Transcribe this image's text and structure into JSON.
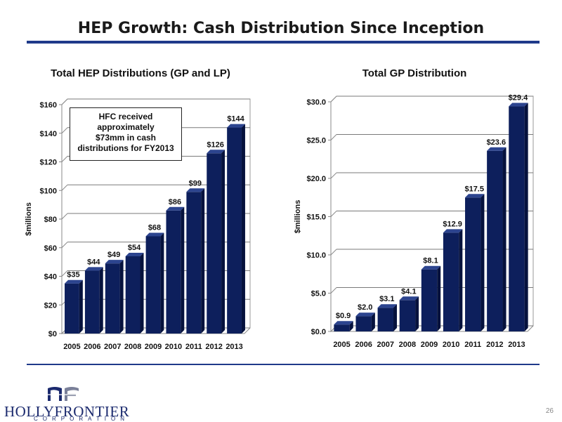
{
  "title": "HEP Growth: Cash Distribution Since Inception",
  "page_number": "26",
  "logo": {
    "text": "HOLLYFRONTIER",
    "subtext": "CORPORATION"
  },
  "callout": "HFC received approximately $73mm in cash distributions for FY2013",
  "colors": {
    "bar": "#0d1f5c",
    "rule": "#1f3a8a"
  },
  "chart_data": [
    {
      "type": "bar",
      "title": "Total HEP Distributions (GP and LP)",
      "ylabel": "$millions",
      "xlabel": "",
      "categories": [
        "2005",
        "2006",
        "2007",
        "2008",
        "2009",
        "2010",
        "2011",
        "2012",
        "2013"
      ],
      "values": [
        35,
        44,
        49,
        54,
        68,
        86,
        99,
        126,
        144
      ],
      "data_labels": [
        "$35",
        "$44",
        "$49",
        "$54",
        "$68",
        "$86",
        "$99",
        "$126",
        "$144"
      ],
      "ylim": [
        0,
        160
      ],
      "yticks": [
        0,
        20,
        40,
        60,
        80,
        100,
        120,
        140,
        160
      ],
      "ytick_labels": [
        "$0",
        "$20",
        "$40",
        "$60",
        "$80",
        "$100",
        "$120",
        "$140",
        "$160"
      ],
      "grid": true
    },
    {
      "type": "bar",
      "title": "Total GP Distribution",
      "ylabel": "$millions",
      "xlabel": "",
      "categories": [
        "2005",
        "2006",
        "2007",
        "2008",
        "2009",
        "2010",
        "2011",
        "2012",
        "2013"
      ],
      "values": [
        0.9,
        2.0,
        3.1,
        4.1,
        8.1,
        12.9,
        17.5,
        23.6,
        29.4
      ],
      "data_labels": [
        "$0.9",
        "$2.0",
        "$3.1",
        "$4.1",
        "$8.1",
        "$12.9",
        "$17.5",
        "$23.6",
        "$29.4"
      ],
      "ylim": [
        0,
        30
      ],
      "yticks": [
        0,
        5,
        10,
        15,
        20,
        25,
        30
      ],
      "ytick_labels": [
        "$0.0",
        "$5.0",
        "$10.0",
        "$15.0",
        "$20.0",
        "$25.0",
        "$30.0"
      ],
      "grid": true
    }
  ]
}
